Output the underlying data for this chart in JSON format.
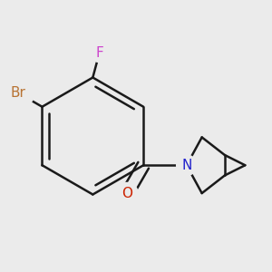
{
  "background_color": "#ebebeb",
  "bond_color": "#1a1a1a",
  "bond_width": 1.8,
  "atom_labels": {
    "Br": {
      "text": "Br",
      "color": "#b87333",
      "fontsize": 11
    },
    "F": {
      "text": "F",
      "color": "#cc44cc",
      "fontsize": 11
    },
    "O": {
      "text": "O",
      "color": "#cc2200",
      "fontsize": 11
    },
    "N": {
      "text": "N",
      "color": "#2222cc",
      "fontsize": 11
    }
  },
  "figsize": [
    3.0,
    3.0
  ],
  "dpi": 100
}
